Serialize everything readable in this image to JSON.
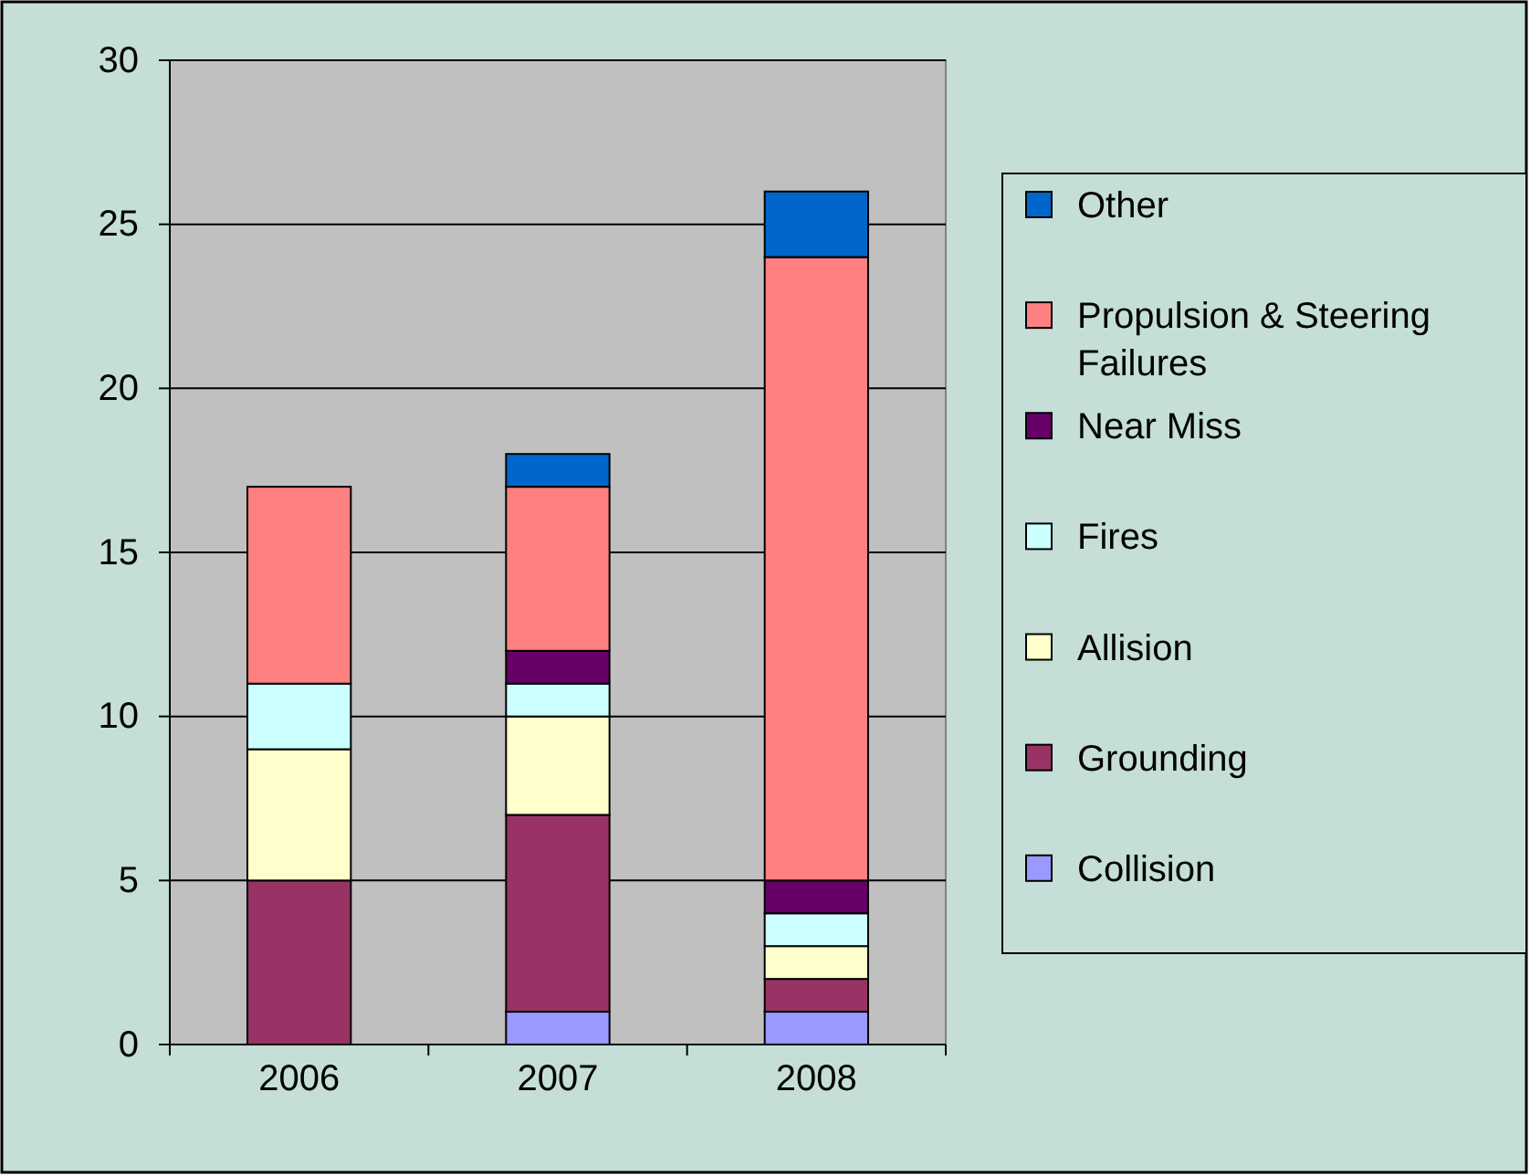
{
  "chart_data": {
    "type": "bar",
    "stacked": true,
    "categories": [
      "2006",
      "2007",
      "2008"
    ],
    "ylim": [
      0,
      30
    ],
    "yticks": [
      0,
      5,
      10,
      15,
      20,
      25,
      30
    ],
    "grid": "y",
    "legend": "right",
    "series": [
      {
        "name": "Collision",
        "color": "#9999ff",
        "values": [
          0,
          1,
          1
        ]
      },
      {
        "name": "Grounding",
        "color": "#993366",
        "values": [
          5,
          6,
          1
        ]
      },
      {
        "name": "Allision",
        "color": "#ffffcc",
        "values": [
          4,
          3,
          1
        ]
      },
      {
        "name": "Fires",
        "color": "#ccffff",
        "values": [
          2,
          1,
          1
        ]
      },
      {
        "name": "Near Miss",
        "color": "#660066",
        "values": [
          0,
          1,
          1
        ]
      },
      {
        "name": "Propulsion & Steering Failures",
        "color": "#ff8080",
        "values": [
          6,
          5,
          19
        ]
      },
      {
        "name": "Other",
        "color": "#0066cc",
        "values": [
          0,
          1,
          2
        ]
      }
    ]
  }
}
